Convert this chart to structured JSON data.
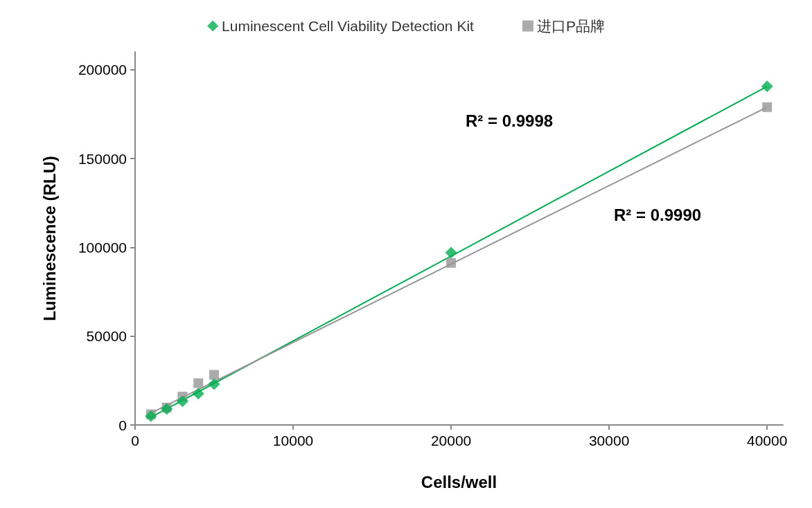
{
  "chart_data": {
    "type": "scatter",
    "xlabel": "Cells/well",
    "ylabel": "Luminescence (RLU)",
    "xlim": [
      0,
      41000
    ],
    "xticks": [
      0,
      10000,
      20000,
      30000,
      40000
    ],
    "ylim": [
      0,
      210000
    ],
    "yticks": [
      0,
      50000,
      100000,
      150000,
      200000
    ],
    "grid": false,
    "legend": "top",
    "series": [
      {
        "name": "Luminescent Cell Viability Detection Kit",
        "marker": "diamond",
        "color": "#00b050",
        "x": [
          1000,
          2000,
          3000,
          4000,
          5000,
          20000,
          40000
        ],
        "values": [
          5000,
          9000,
          13300,
          17600,
          23000,
          97000,
          190600
        ]
      },
      {
        "name": "进口P品牌",
        "marker": "square",
        "color": "#969696",
        "x": [
          1000,
          2000,
          3000,
          4000,
          5000,
          20000,
          40000
        ],
        "values": [
          6000,
          9800,
          16000,
          23500,
          28200,
          91200,
          178900
        ]
      },
      {
        "type": "line",
        "marker": "none",
        "color": "#00b050",
        "x": [
          1000,
          40000
        ],
        "values": [
          4300,
          190600
        ]
      },
      {
        "type": "line",
        "marker": "none",
        "color": "#969696",
        "x": [
          1000,
          40000
        ],
        "values": [
          6700,
          178900
        ]
      }
    ],
    "annotations": [
      "R² = 0.9998",
      "R² = 0.9990"
    ]
  }
}
